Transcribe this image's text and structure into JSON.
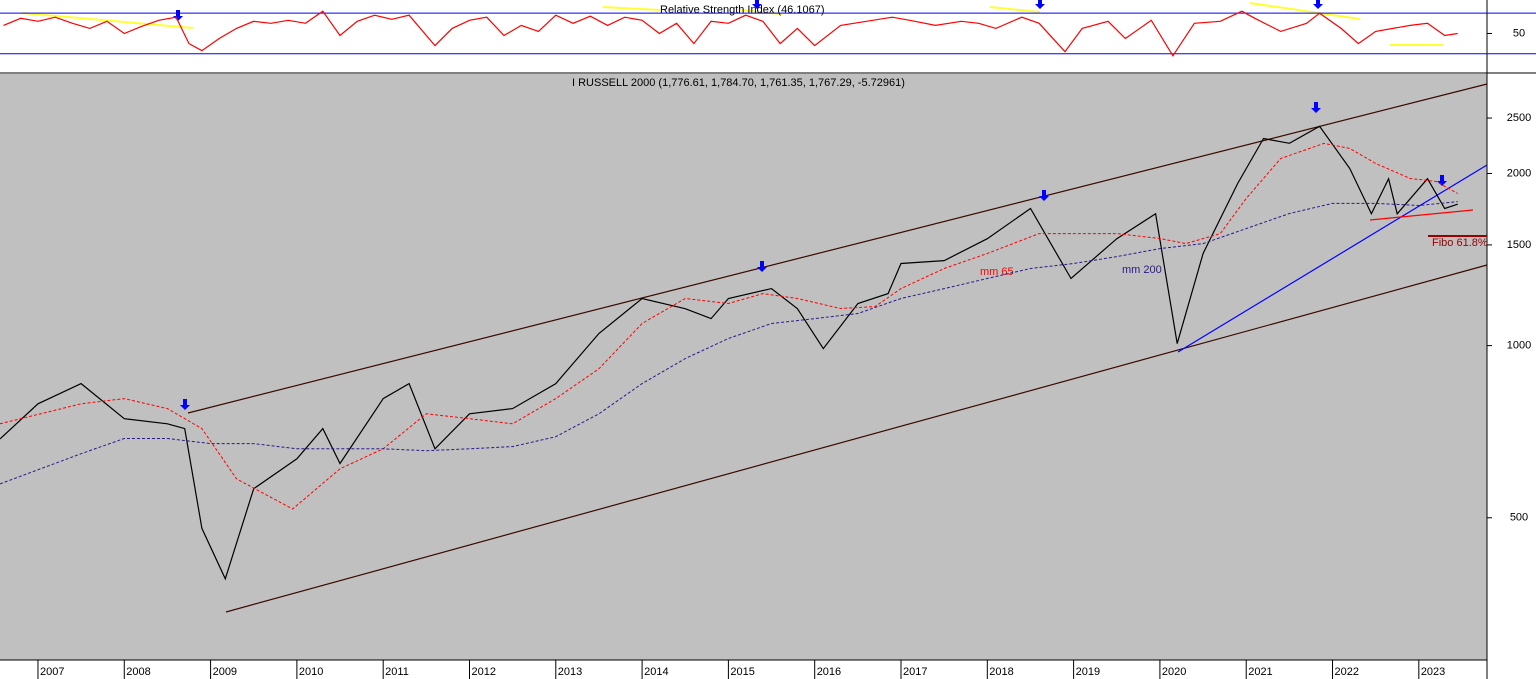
{
  "chart_data": [
    {
      "type": "line",
      "title": "Relative Strength Index (46.1067)",
      "xlim": [
        2006.56,
        2023.79
      ],
      "ylim": [
        12,
        83
      ],
      "yticks": [
        50
      ],
      "hlines": [
        30,
        70
      ],
      "x": [
        2006.6,
        2006.8,
        2007.0,
        2007.2,
        2007.4,
        2007.6,
        2007.8,
        2008.0,
        2008.2,
        2008.4,
        2008.6,
        2008.75,
        2008.9,
        2009.1,
        2009.3,
        2009.5,
        2009.7,
        2009.9,
        2010.1,
        2010.3,
        2010.5,
        2010.7,
        2010.9,
        2011.1,
        2011.3,
        2011.6,
        2011.8,
        2012.0,
        2012.2,
        2012.4,
        2012.6,
        2012.8,
        2013.0,
        2013.2,
        2013.4,
        2013.6,
        2013.8,
        2014.0,
        2014.2,
        2014.4,
        2014.6,
        2014.8,
        2015.0,
        2015.2,
        2015.4,
        2015.6,
        2015.8,
        2016.0,
        2016.3,
        2016.6,
        2016.9,
        2017.1,
        2017.4,
        2017.7,
        2017.9,
        2018.1,
        2018.4,
        2018.6,
        2018.9,
        2019.1,
        2019.4,
        2019.6,
        2019.9,
        2020.15,
        2020.4,
        2020.7,
        2020.95,
        2021.1,
        2021.4,
        2021.7,
        2021.85,
        2022.1,
        2022.3,
        2022.5,
        2022.7,
        2022.9,
        2023.1,
        2023.3,
        2023.45
      ],
      "series": [
        {
          "color": "#ff0000",
          "values": [
            58,
            65,
            62,
            66,
            60,
            55,
            62,
            50,
            57,
            63,
            66,
            40,
            33,
            45,
            55,
            62,
            60,
            63,
            60,
            72,
            48,
            62,
            68,
            64,
            68,
            38,
            55,
            63,
            66,
            48,
            58,
            52,
            68,
            60,
            67,
            58,
            66,
            63,
            50,
            60,
            40,
            62,
            60,
            68,
            62,
            40,
            55,
            38,
            58,
            62,
            66,
            63,
            58,
            62,
            60,
            55,
            66,
            60,
            32,
            55,
            62,
            45,
            63,
            28,
            60,
            62,
            72,
            65,
            52,
            60,
            70,
            55,
            40,
            52,
            55,
            58,
            60,
            48,
            50
          ]
        }
      ]
    },
    {
      "type": "line",
      "title": "I RUSSELL 2000 (1,776.61, 1,784.70, 1,761.35, 1,767.29, -5.72961)",
      "log_scale": true,
      "xlim": [
        2006.56,
        2023.79
      ],
      "ylim": [
        282,
        2985
      ],
      "xticks": [
        2007,
        2008,
        2009,
        2010,
        2011,
        2012,
        2013,
        2014,
        2015,
        2016,
        2017,
        2018,
        2019,
        2020,
        2021,
        2022,
        2023
      ],
      "yticks": [
        500,
        1000,
        1500,
        2000,
        2500
      ],
      "annotations": [
        "Fibo 61.8%"
      ],
      "series": [
        {
          "color": "#000000",
          "x": [
            2006.56,
            2007.0,
            2007.5,
            2008.0,
            2008.5,
            2008.7,
            2008.9,
            2009.17,
            2009.5,
            2010.0,
            2010.3,
            2010.5,
            2011.0,
            2011.3,
            2011.6,
            2012.0,
            2012.5,
            2013.0,
            2013.5,
            2014.0,
            2014.5,
            2014.8,
            2015.0,
            2015.5,
            2015.8,
            2016.1,
            2016.5,
            2016.85,
            2017.0,
            2017.5,
            2018.0,
            2018.5,
            2018.97,
            2019.5,
            2019.95,
            2020.2,
            2020.5,
            2020.9,
            2021.2,
            2021.5,
            2021.85,
            2022.2,
            2022.45,
            2022.65,
            2022.75,
            2023.1,
            2023.3,
            2023.45
          ],
          "values": [
            687,
            791,
            858,
            745,
            730,
            716,
            479,
            391,
            562,
            634,
            716,
            622,
            808,
            858,
            660,
            760,
            776,
            858,
            1050,
            1209,
            1160,
            1115,
            1209,
            1258,
            1160,
            988,
            1185,
            1233,
            1392,
            1408,
            1538,
            1737,
            1310,
            1538,
            1700,
            1008,
            1449,
            1920,
            2302,
            2258,
            2418,
            2040,
            1700,
            1958,
            1700,
            1958,
            1737,
            1767
          ]
        },
        {
          "name": "mm 65",
          "color": "#ff0000",
          "x": [
            2006.56,
            2007.5,
            2008.0,
            2008.5,
            2008.9,
            2009.3,
            2009.95,
            2010.5,
            2011.0,
            2011.5,
            2012.0,
            2012.5,
            2013.0,
            2013.5,
            2014.0,
            2014.5,
            2015.0,
            2015.4,
            2015.8,
            2016.3,
            2016.7,
            2017.0,
            2017.5,
            2018.0,
            2018.6,
            2019.0,
            2019.5,
            2020.0,
            2020.3,
            2020.7,
            2021.0,
            2021.4,
            2021.9,
            2022.2,
            2022.5,
            2022.9,
            2023.2,
            2023.45
          ],
          "values": [
            730,
            791,
            808,
            776,
            716,
            585,
            518,
            609,
            660,
            760,
            745,
            730,
            808,
            911,
            1093,
            1209,
            1185,
            1233,
            1209,
            1161,
            1170,
            1258,
            1364,
            1449,
            1570,
            1570,
            1570,
            1539,
            1508,
            1570,
            1808,
            2124,
            2257,
            2212,
            2082,
            1960,
            1936,
            1845
          ]
        },
        {
          "name": "mm 200",
          "color": "#2a1a8a",
          "x": [
            2006.56,
            2007.5,
            2008.0,
            2008.5,
            2009.0,
            2009.5,
            2010.0,
            2010.5,
            2011.0,
            2011.5,
            2012.0,
            2012.5,
            2013.0,
            2013.5,
            2014.0,
            2014.5,
            2015.0,
            2015.5,
            2016.0,
            2016.5,
            2017.0,
            2017.5,
            2018.0,
            2018.5,
            2019.0,
            2019.5,
            2020.0,
            2020.5,
            2021.0,
            2021.5,
            2022.0,
            2022.5,
            2023.0,
            2023.45
          ],
          "values": [
            573,
            647,
            688,
            688,
            674,
            674,
            660,
            660,
            660,
            655,
            660,
            666,
            693,
            760,
            858,
            949,
            1029,
            1093,
            1115,
            1138,
            1209,
            1258,
            1310,
            1364,
            1392,
            1431,
            1478,
            1508,
            1602,
            1702,
            1773,
            1773,
            1758,
            1786
          ]
        }
      ]
    }
  ]
}
